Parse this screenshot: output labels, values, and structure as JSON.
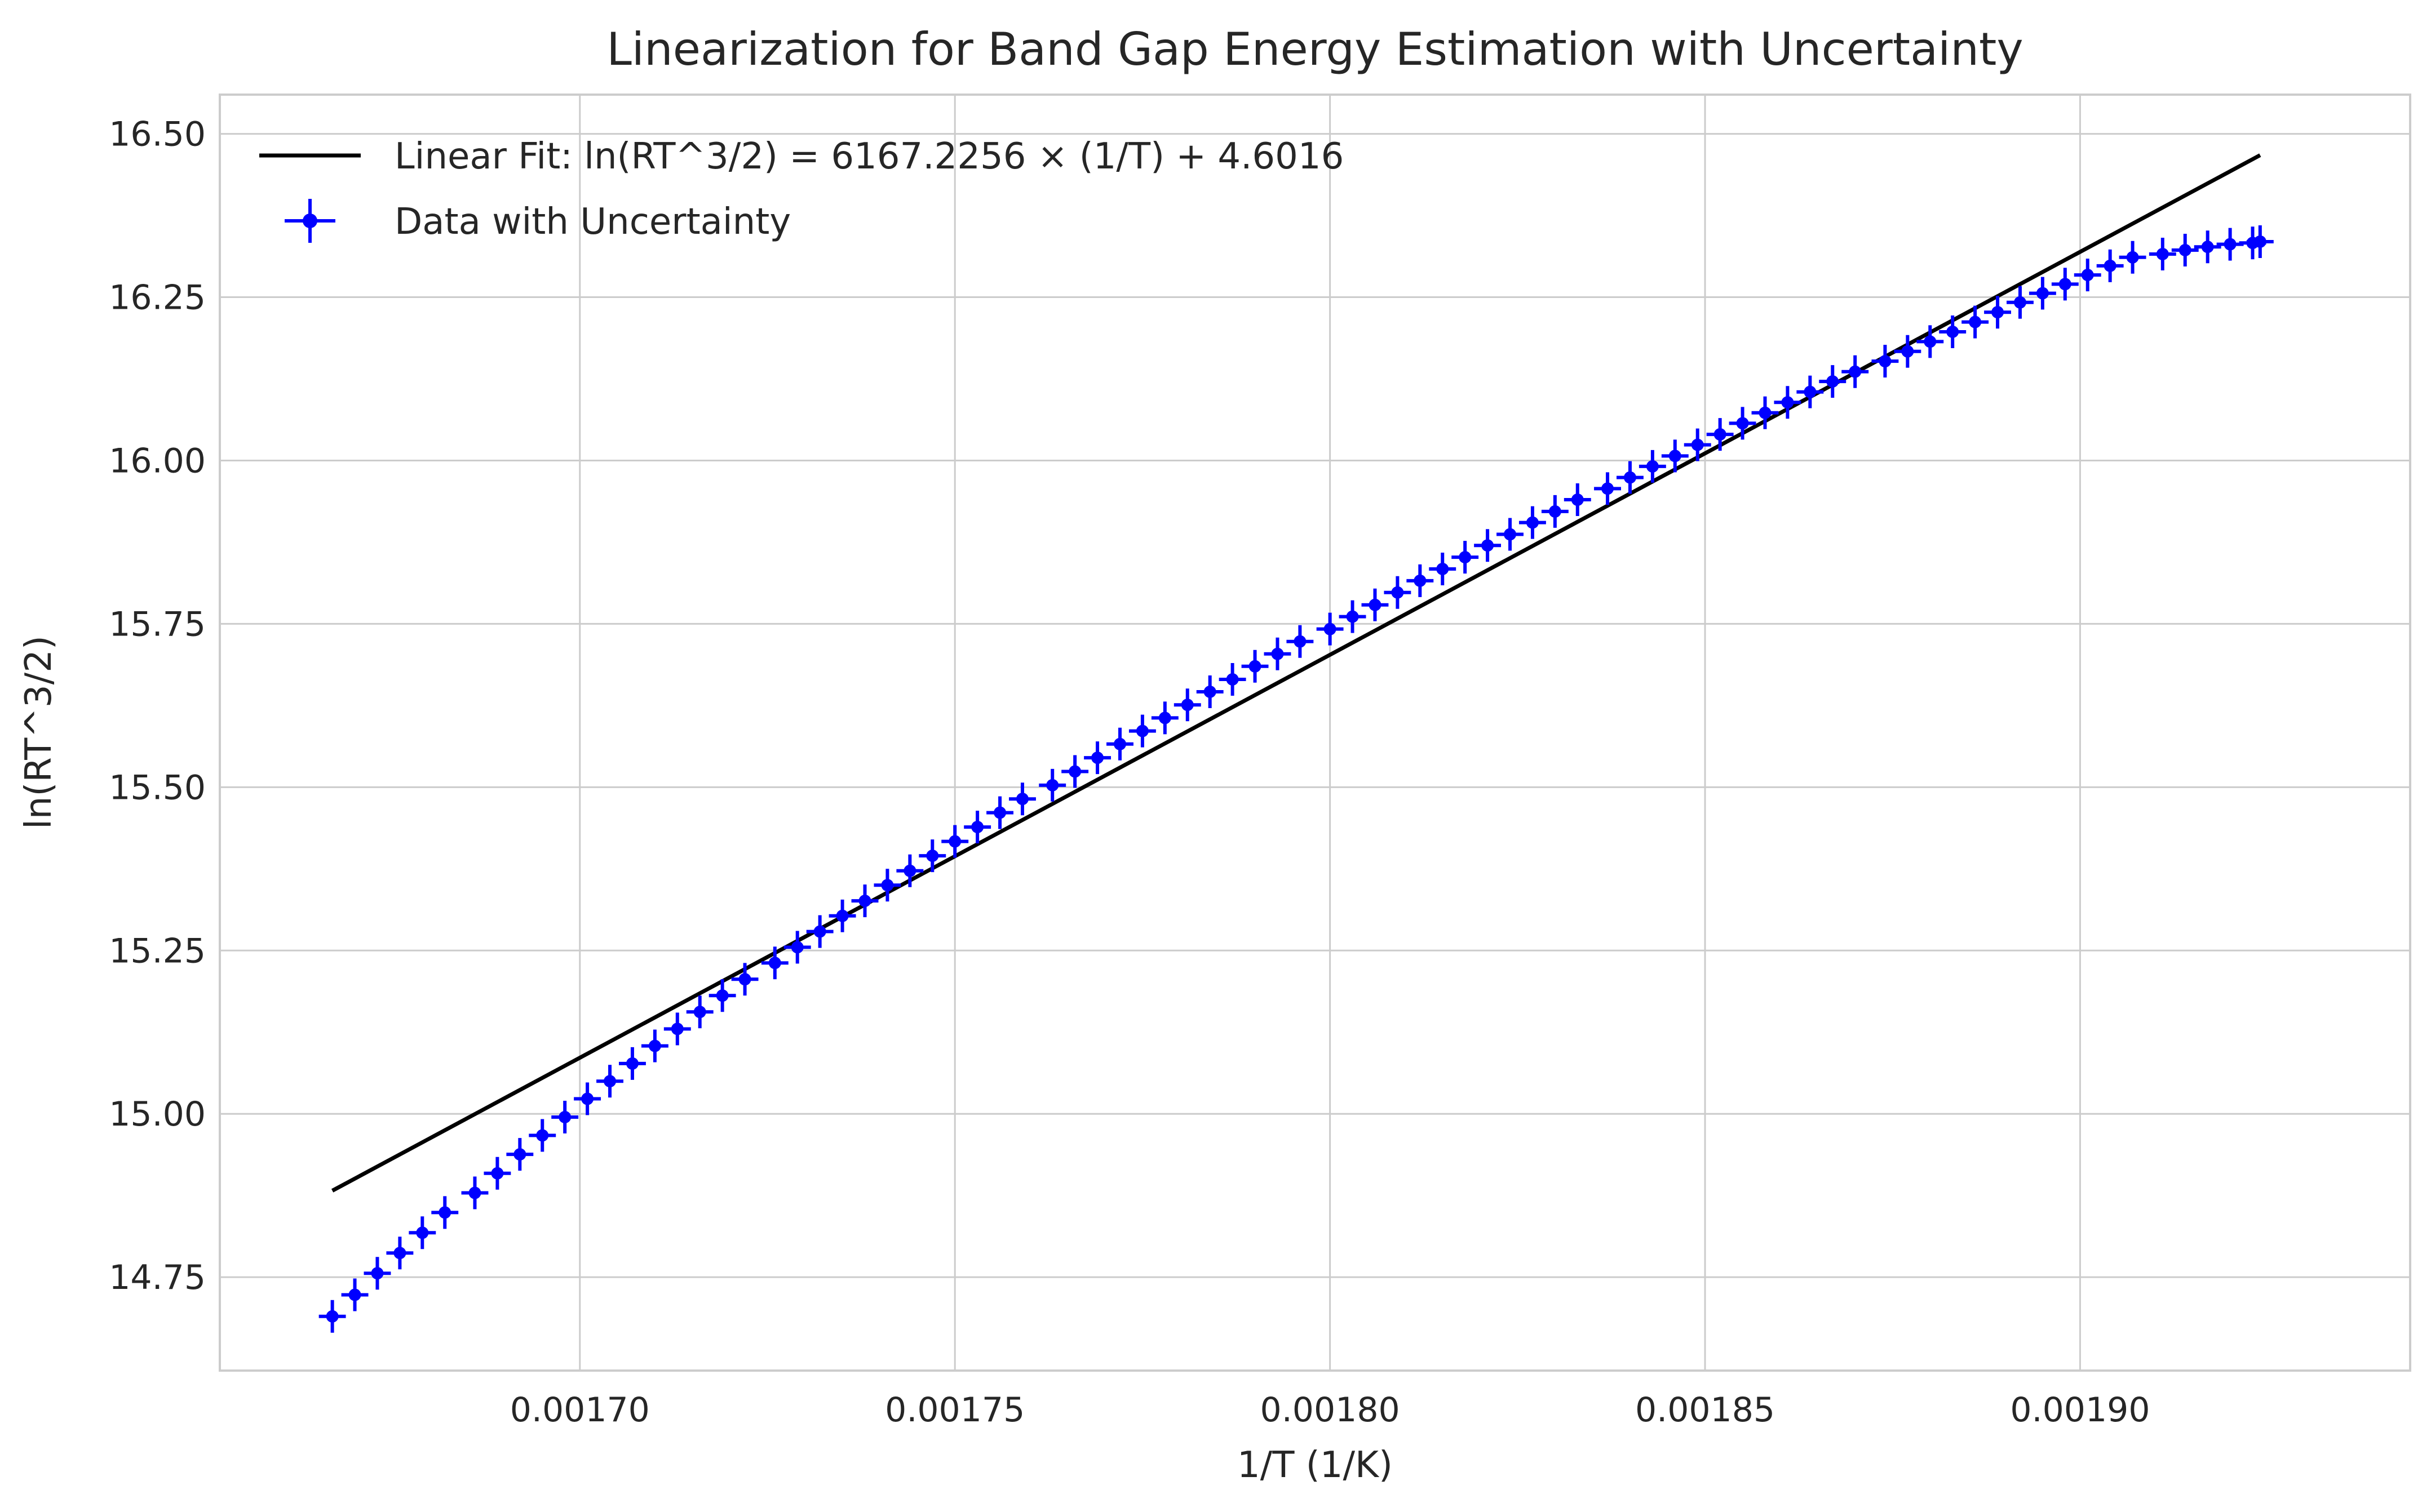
{
  "chart_data": {
    "type": "scatter",
    "title": "Linearization for Band Gap Energy Estimation with Uncertainty",
    "xlabel": "1/T (1/K)",
    "ylabel": "ln(RT^3/2)",
    "xlim": [
      0.001652,
      0.001944
    ],
    "ylim": [
      14.607,
      16.56
    ],
    "xticks": [
      0.0017,
      0.00175,
      0.0018,
      0.00185,
      0.0019
    ],
    "xtick_labels": [
      "0.00170",
      "0.00175",
      "0.00180",
      "0.00185",
      "0.00190"
    ],
    "yticks": [
      14.75,
      15.0,
      15.25,
      15.5,
      15.75,
      16.0,
      16.25,
      16.5
    ],
    "ytick_labels": [
      "14.75",
      "15.00",
      "15.25",
      "15.50",
      "15.75",
      "16.00",
      "16.25",
      "16.50"
    ],
    "grid": true,
    "legend_position": "top-left",
    "fit": {
      "name": "Linear Fit: ln(RT^3/2) = 6167.2256 × (1/T) + 4.6016",
      "slope": 6167.2256,
      "intercept": 4.6016,
      "x_range": [
        0.001667,
        0.001924
      ],
      "color": "#000000"
    },
    "series": [
      {
        "name": "Data with Uncertainty",
        "color": "#0000ff",
        "x_range": [
          0.001667,
          0.001924
        ],
        "n_points": 85,
        "x_error": 1.8e-06,
        "y_error": 0.025,
        "x": [
          0.001667,
          0.00167,
          0.001673,
          0.001676,
          0.001679,
          0.001682,
          0.001686,
          0.001689,
          0.001692,
          0.001695,
          0.001698,
          0.001701,
          0.001704,
          0.001707,
          0.00171,
          0.001713,
          0.001716,
          0.001719,
          0.001722,
          0.001726,
          0.001729,
          0.001732,
          0.001735,
          0.001738,
          0.001741,
          0.001744,
          0.001747,
          0.00175,
          0.001753,
          0.001756,
          0.001759,
          0.001763,
          0.001766,
          0.001769,
          0.001772,
          0.001775,
          0.001778,
          0.001781,
          0.001784,
          0.001787,
          0.00179,
          0.001793,
          0.001796,
          0.0018,
          0.001803,
          0.001806,
          0.001809,
          0.001812,
          0.001815,
          0.001818,
          0.001821,
          0.001824,
          0.001827,
          0.00183,
          0.001833,
          0.001837,
          0.00184,
          0.001843,
          0.001846,
          0.001849,
          0.001852,
          0.001855,
          0.001858,
          0.001861,
          0.001864,
          0.001867,
          0.00187,
          0.001874,
          0.001877,
          0.00188,
          0.001883,
          0.001886,
          0.001889,
          0.001892,
          0.001895,
          0.001898,
          0.001901,
          0.001904,
          0.001907,
          0.001911,
          0.001914,
          0.001917,
          0.00192,
          0.001923,
          0.001924
        ],
        "y": [
          14.69,
          14.723,
          14.756,
          14.787,
          14.818,
          14.849,
          14.879,
          14.909,
          14.938,
          14.967,
          14.995,
          15.023,
          15.05,
          15.077,
          15.104,
          15.13,
          15.156,
          15.181,
          15.206,
          15.231,
          15.255,
          15.279,
          15.303,
          15.326,
          15.35,
          15.372,
          15.395,
          15.417,
          15.439,
          15.461,
          15.482,
          15.503,
          15.524,
          15.545,
          15.566,
          15.586,
          15.606,
          15.626,
          15.646,
          15.665,
          15.685,
          15.704,
          15.723,
          15.742,
          15.761,
          15.779,
          15.798,
          15.816,
          15.834,
          15.852,
          15.87,
          15.887,
          15.905,
          15.922,
          15.94,
          15.957,
          15.974,
          15.991,
          16.007,
          16.024,
          16.04,
          16.057,
          16.073,
          16.089,
          16.105,
          16.121,
          16.136,
          16.152,
          16.167,
          16.182,
          16.197,
          16.212,
          16.227,
          16.242,
          16.256,
          16.27,
          16.284,
          16.298,
          16.311,
          16.316,
          16.322,
          16.327,
          16.331,
          16.333,
          16.335
        ]
      }
    ]
  }
}
